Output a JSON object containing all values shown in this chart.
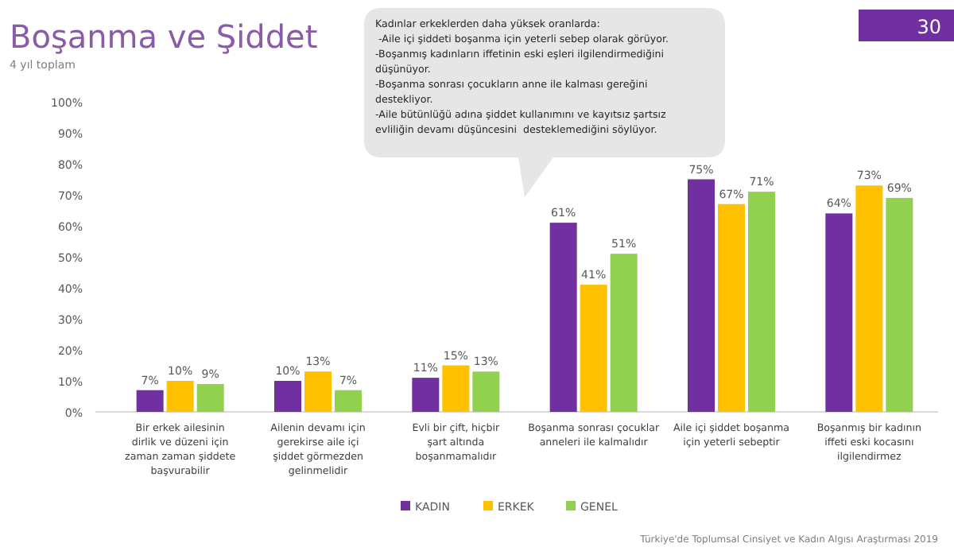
{
  "chart_data": {
    "type": "bar",
    "title": "Boşanma ve Şiddet",
    "subtitle": "4 yıl toplam",
    "categories": [
      "Bir erkek ailesinin dirlik ve düzeni için zaman zaman şiddete başvurabilir",
      "Ailenin devamı için gerekirse aile içi şiddet görmezden gelinmelidir",
      "Evli bir çift, hiçbir şart altında boşanmamalıdır",
      "Boşanma sonrası çocuklar anneleri ile kalmalıdır",
      "Aile içi şiddet boşanma için yeterli sebeptir",
      "Boşanmış bir kadının iffeti eski kocasını ilgilendirmez"
    ],
    "series": [
      {
        "name": "KADIN",
        "color": "#7030a0",
        "values": [
          7,
          10,
          11,
          61,
          75,
          64
        ],
        "value_labels": [
          "7%",
          "10%",
          "11%",
          "61%",
          "75%",
          "64%"
        ]
      },
      {
        "name": "ERKEK",
        "color": "#ffc000",
        "values": [
          10,
          13,
          15,
          41,
          67,
          73
        ],
        "value_labels": [
          "10%",
          "13%",
          "15%",
          "41%",
          "67%",
          "73%"
        ]
      },
      {
        "name": "GENEL",
        "color": "#92d050",
        "values": [
          9,
          7,
          13,
          51,
          71,
          69
        ],
        "value_labels": [
          "9%",
          "7%",
          "13%",
          "51%",
          "71%",
          "69%"
        ]
      }
    ],
    "ylim": [
      0,
      100
    ],
    "yticks": [
      {
        "value": 0,
        "label": "0%"
      },
      {
        "value": 10,
        "label": "10%"
      },
      {
        "value": 20,
        "label": "20%"
      },
      {
        "value": 30,
        "label": "30%"
      },
      {
        "value": 40,
        "label": "40%"
      },
      {
        "value": 50,
        "label": "50%"
      },
      {
        "value": 60,
        "label": "60%"
      },
      {
        "value": 70,
        "label": "70%"
      },
      {
        "value": 80,
        "label": "80%"
      },
      {
        "value": 90,
        "label": "90%"
      },
      {
        "value": 100,
        "label": "100%"
      }
    ],
    "legend": "bottom",
    "annotations": [
      "Kadınlar erkeklerden daha yüksek oranlarda:\n -Aile içi şiddeti boşanma için yeterli sebep olarak görüyor.\n-Boşanmış kadınların iffetinin eski eşleri ilgilendirmediğini\ndüşünüyor.\n-Boşanma sonrası çocukların anne ile kalması gereğini\ndestekliyor.\n-Aile bütünlüğü adına şiddet kullanımını ve kayıtsız şartsız\nevliliğin devamı düşüncesini  desteklemediğini söylüyor.",
      "30",
      "Türkiye'de Toplumsal Cinsiyet ve Kadın Algısı Araştırması  2019"
    ]
  }
}
